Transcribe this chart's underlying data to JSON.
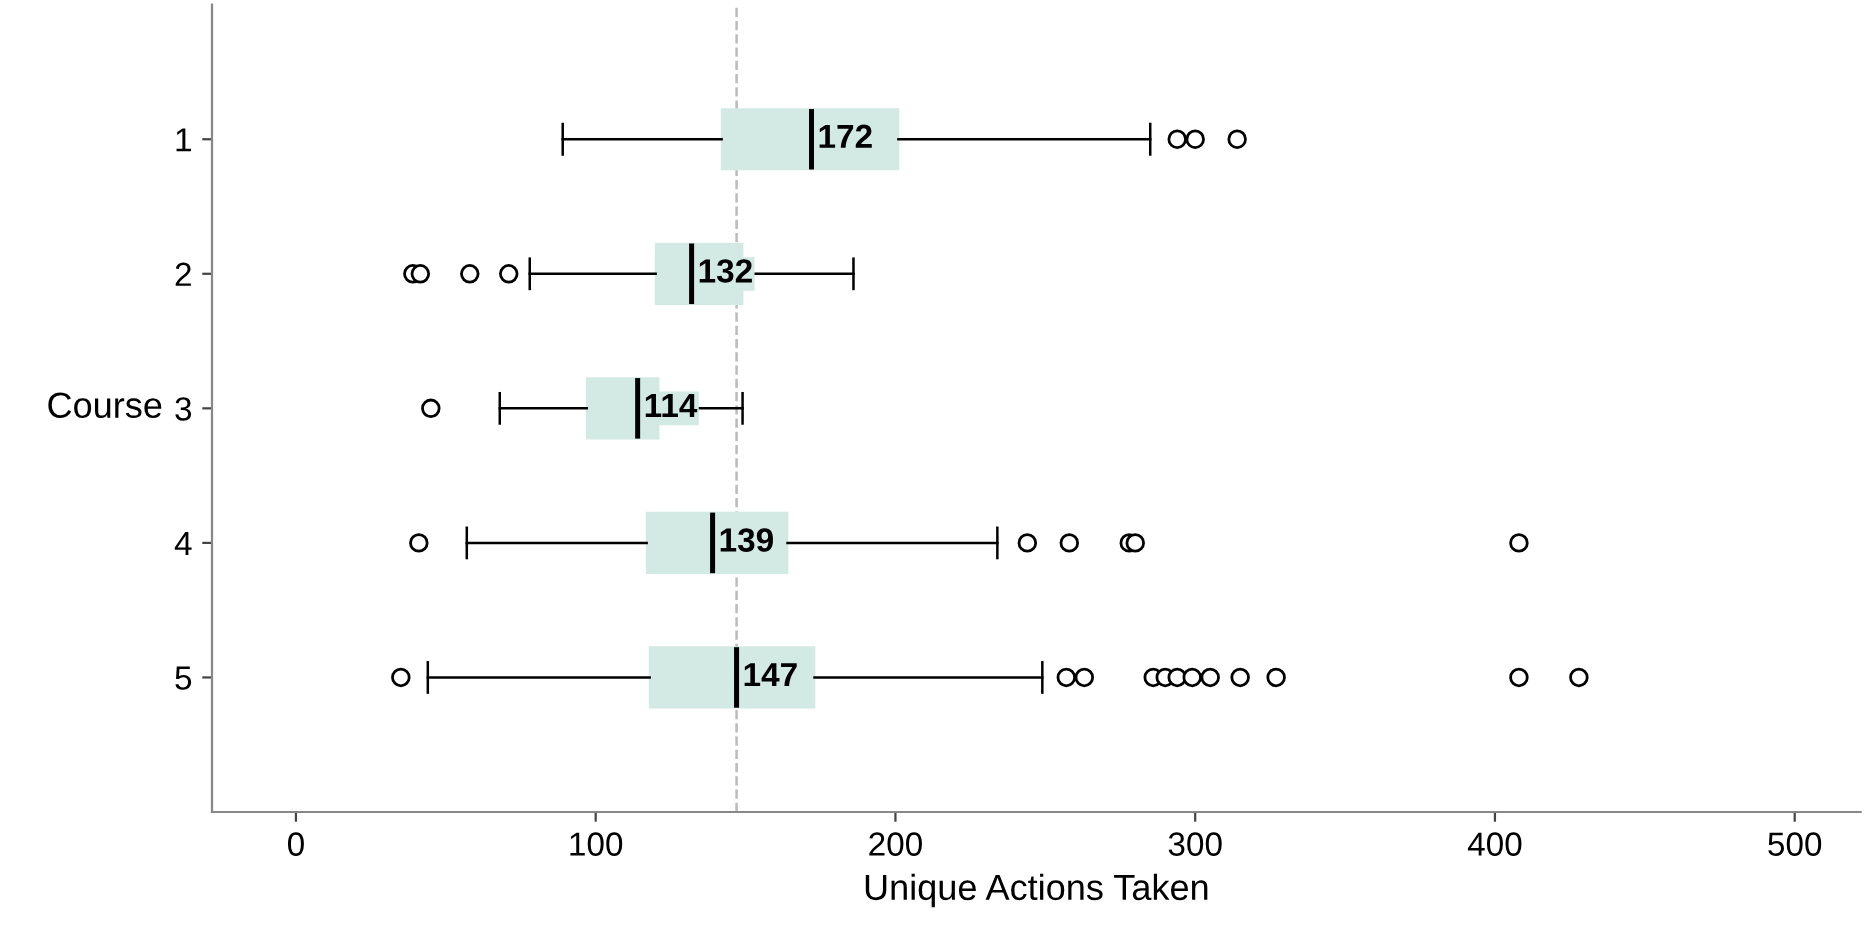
{
  "chart_data": {
    "type": "box",
    "orientation": "horizontal",
    "xlabel": "Unique Actions Taken",
    "ylabel": "Course",
    "categories": [
      "1",
      "2",
      "3",
      "4",
      "5"
    ],
    "boxes": [
      {
        "low": 89,
        "q1": 142,
        "median": 172,
        "q3": 201,
        "high": 285,
        "outliers": [
          294,
          300,
          314
        ]
      },
      {
        "low": 78,
        "q1": 120,
        "median": 132,
        "q3": 149,
        "high": 186,
        "outliers": [
          39,
          41.5,
          58,
          71
        ]
      },
      {
        "low": 68,
        "q1": 97,
        "median": 114,
        "q3": 121,
        "high": 149,
        "outliers": [
          45
        ]
      },
      {
        "low": 57,
        "q1": 117,
        "median": 139,
        "q3": 164,
        "high": 234,
        "outliers": [
          41,
          244,
          258,
          278,
          280,
          408
        ]
      },
      {
        "low": 44,
        "q1": 118,
        "median": 147,
        "q3": 173,
        "high": 249,
        "outliers": [
          35,
          257,
          263,
          286,
          290,
          294,
          299,
          305,
          315,
          327,
          408,
          428
        ]
      }
    ],
    "color": "#d3e9e3",
    "xlim": [
      -28,
      522
    ],
    "xticks": [
      0,
      100,
      200,
      300,
      400,
      500
    ],
    "ref_lines": [
      {
        "axis": "x",
        "value": 147,
        "color": "#bbbbbb",
        "line_style": "dashed"
      }
    ],
    "annotations": [
      {
        "text": "172",
        "x": 172,
        "y": "1"
      },
      {
        "text": "132",
        "x": 132,
        "y": "2"
      },
      {
        "text": "114",
        "x": 114,
        "y": "3"
      },
      {
        "text": "139",
        "x": 139,
        "y": "4"
      },
      {
        "text": "147",
        "x": 147,
        "y": "5"
      }
    ],
    "grid": false
  }
}
